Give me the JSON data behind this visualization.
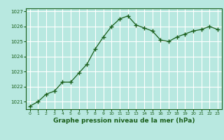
{
  "title": "Graphe pression niveau de la mer (hPa)",
  "background_color": "#b8e8e0",
  "grid_color": "#ffffff",
  "line_color": "#1a5e1a",
  "marker_color": "#1a5e1a",
  "ylim": [
    1020.5,
    1027.2
  ],
  "yticks": [
    1021,
    1022,
    1023,
    1024,
    1025,
    1026,
    1027
  ],
  "xlim": [
    -0.5,
    23.5
  ],
  "xticks": [
    0,
    1,
    2,
    3,
    4,
    5,
    6,
    7,
    8,
    9,
    10,
    11,
    12,
    13,
    14,
    15,
    16,
    17,
    18,
    19,
    20,
    21,
    22,
    23
  ],
  "hours": [
    0,
    1,
    2,
    3,
    4,
    5,
    6,
    7,
    8,
    9,
    10,
    11,
    12,
    13,
    14,
    15,
    16,
    17,
    18,
    19,
    20,
    21,
    22,
    23
  ],
  "pressure": [
    1020.7,
    1021.0,
    1021.5,
    1021.7,
    1022.3,
    1022.3,
    1022.9,
    1023.5,
    1024.5,
    1025.3,
    1026.0,
    1026.5,
    1026.7,
    1026.1,
    1025.9,
    1025.7,
    1025.1,
    1025.0,
    1025.3,
    1025.5,
    1025.7,
    1025.8,
    1026.0,
    1025.8
  ]
}
